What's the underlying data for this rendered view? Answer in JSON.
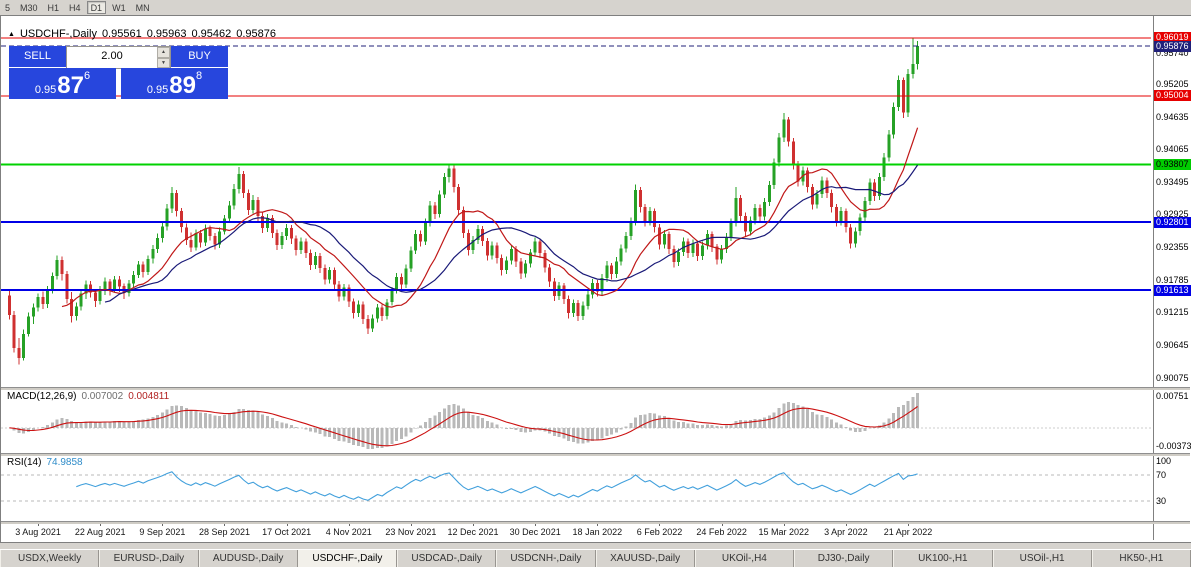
{
  "toolbar": {
    "periods": [
      "5",
      "M30",
      "H1",
      "H4",
      "D1",
      "W1",
      "MN"
    ],
    "active_period": "D1"
  },
  "title": {
    "marker": "▲",
    "symbol": "USDCHF-,Daily",
    "open": "0.95561",
    "high": "0.95963",
    "low": "0.95462",
    "close": "0.95876"
  },
  "trade_panel": {
    "sell_label": "SELL",
    "buy_label": "BUY",
    "volume": "2.00",
    "sell_price_prefix": "0.95",
    "sell_price_big": "87",
    "sell_price_pip": "6",
    "buy_price_prefix": "0.95",
    "buy_price_big": "89",
    "buy_price_pip": "8",
    "panel_color": "#2746dd"
  },
  "macd": {
    "name": "MACD(12,26,9)",
    "value_main": "0.007002",
    "value_signal": "0.004811",
    "axis_top": "0.00751",
    "axis_bottom": "-0.00373"
  },
  "rsi": {
    "name": "RSI(14)",
    "value": "74.9858",
    "axis": [
      {
        "text": "100",
        "value": 100
      },
      {
        "text": "70",
        "value": 70
      },
      {
        "text": "30",
        "value": 30
      }
    ]
  },
  "tabs": [
    {
      "label": "USDX,Weekly"
    },
    {
      "label": "EURUSD-,Daily"
    },
    {
      "label": "AUDUSD-,Daily"
    },
    {
      "label": "USD​CHF-,Daily"
    },
    {
      "label": "USDCAD-,Daily"
    },
    {
      "label": "USDCNH-,Daily"
    },
    {
      "label": "XAUUSD-,Daily"
    },
    {
      "label": "UKOil-,H4"
    },
    {
      "label": "DJ30-,Daily"
    },
    {
      "label": "UK100-,H1"
    },
    {
      "label": "USOil-,H1"
    },
    {
      "label": "HK50-,H1"
    }
  ],
  "active_tab_index": 3,
  "chart_data": {
    "type": "candlestick",
    "symbol": "USDCHF-",
    "timeframe": "Daily",
    "current_price": 0.95876,
    "price_axis": {
      "min": 0.8992,
      "max": 0.964,
      "ticks": [
        "0.95740",
        "0.95205",
        "0.94635",
        "0.94065",
        "0.93495",
        "0.92925",
        "0.92355",
        "0.91785",
        "0.91215",
        "0.90645",
        "0.90075"
      ]
    },
    "price_labels": [
      {
        "text": "0.96019",
        "value": 0.96019,
        "bg": "#e60000",
        "fg": "#ffffff"
      },
      {
        "text": "0.95876",
        "value": 0.95876,
        "bg": "#20207a",
        "fg": "#ffffff"
      },
      {
        "text": "0.95004",
        "value": 0.95004,
        "bg": "#e60000",
        "fg": "#ffffff"
      },
      {
        "text": "0.93807",
        "value": 0.93807,
        "bg": "#00cc00",
        "fg": "#000000"
      },
      {
        "text": "0.92801",
        "value": 0.92801,
        "bg": "#0000e6",
        "fg": "#ffffff"
      },
      {
        "text": "0.91613",
        "value": 0.91613,
        "bg": "#0000e6",
        "fg": "#ffffff"
      }
    ],
    "hlines": [
      {
        "value": 0.96019,
        "color": "#e60000",
        "width": 1
      },
      {
        "value": 0.95004,
        "color": "#e60000",
        "width": 1
      },
      {
        "value": 0.93807,
        "color": "#00d200",
        "width": 2
      },
      {
        "value": 0.92801,
        "color": "#0000e6",
        "width": 2
      },
      {
        "value": 0.91613,
        "color": "#0000e6",
        "width": 2
      }
    ],
    "colors": {
      "up": "#26a126",
      "down": "#cf3030",
      "current_line": "#20207a",
      "background": "#ffffff"
    },
    "indicators": {
      "ma_fast": {
        "period": 12,
        "color": "#c01818"
      },
      "ma_slow": {
        "period": 21,
        "color": "#1a1a78"
      },
      "macd": {
        "fast": 12,
        "slow": 26,
        "signal": 9,
        "histogram_color": "#b9b9b9",
        "signal_color": "#cc1111"
      },
      "rsi": {
        "period": 14,
        "color": "#42a0dc",
        "level_high": 70,
        "level_low": 30
      }
    },
    "date_labels": [
      "3 Aug 2021",
      "22 Aug 2021",
      "9 Sep 2021",
      "28 Sep 2021",
      "17 Oct 2021",
      "4 Nov 2021",
      "23 Nov 2021",
      "12 Dec 2021",
      "30 Dec 2021",
      "18 Jan 2022",
      "6 Feb 2022",
      "24 Feb 2022",
      "15 Mar 2022",
      "3 Apr 2022",
      "21 Apr 2022"
    ],
    "date_anchor_indices": [
      6,
      19,
      32,
      45,
      58,
      71,
      84,
      97,
      110,
      123,
      136,
      149,
      162,
      175,
      188
    ],
    "ohlc": [
      [
        0.9152,
        0.916,
        0.911,
        0.9118
      ],
      [
        0.9118,
        0.9125,
        0.9052,
        0.906
      ],
      [
        0.906,
        0.9078,
        0.9031,
        0.9043
      ],
      [
        0.9043,
        0.9092,
        0.9038,
        0.9085
      ],
      [
        0.9085,
        0.9122,
        0.908,
        0.9115
      ],
      [
        0.9115,
        0.9138,
        0.9102,
        0.9131
      ],
      [
        0.9131,
        0.9155,
        0.9124,
        0.9149
      ],
      [
        0.9149,
        0.9159,
        0.9128,
        0.9137
      ],
      [
        0.9137,
        0.9168,
        0.913,
        0.9162
      ],
      [
        0.9162,
        0.9192,
        0.9155,
        0.9186
      ],
      [
        0.9186,
        0.9222,
        0.918,
        0.9214
      ],
      [
        0.9214,
        0.922,
        0.9178,
        0.9189
      ],
      [
        0.9189,
        0.9195,
        0.9138,
        0.9146
      ],
      [
        0.9146,
        0.9158,
        0.9105,
        0.9116
      ],
      [
        0.9116,
        0.914,
        0.9108,
        0.9133
      ],
      [
        0.9133,
        0.9162,
        0.9126,
        0.9155
      ],
      [
        0.9155,
        0.9178,
        0.9146,
        0.9171
      ],
      [
        0.9171,
        0.9177,
        0.9148,
        0.9157
      ],
      [
        0.9157,
        0.9163,
        0.9132,
        0.9142
      ],
      [
        0.9142,
        0.9168,
        0.9136,
        0.9161
      ],
      [
        0.9161,
        0.9183,
        0.9153,
        0.9176
      ],
      [
        0.9176,
        0.9181,
        0.9152,
        0.9163
      ],
      [
        0.9163,
        0.9186,
        0.9157,
        0.918
      ],
      [
        0.918,
        0.9186,
        0.9158,
        0.9168
      ],
      [
        0.9168,
        0.9173,
        0.9146,
        0.9156
      ],
      [
        0.9156,
        0.9179,
        0.915,
        0.9173
      ],
      [
        0.9173,
        0.9195,
        0.9166,
        0.9188
      ],
      [
        0.9188,
        0.9212,
        0.9182,
        0.9206
      ],
      [
        0.9206,
        0.9211,
        0.9183,
        0.9193
      ],
      [
        0.9193,
        0.9222,
        0.9188,
        0.9216
      ],
      [
        0.9216,
        0.924,
        0.9208,
        0.9233
      ],
      [
        0.9233,
        0.926,
        0.9226,
        0.9252
      ],
      [
        0.9252,
        0.9281,
        0.9244,
        0.9272
      ],
      [
        0.9272,
        0.9312,
        0.9265,
        0.9304
      ],
      [
        0.9304,
        0.9341,
        0.9296,
        0.9331
      ],
      [
        0.9331,
        0.9336,
        0.929,
        0.9299
      ],
      [
        0.9299,
        0.9305,
        0.9262,
        0.9271
      ],
      [
        0.9271,
        0.9278,
        0.924,
        0.9249
      ],
      [
        0.9249,
        0.9262,
        0.9228,
        0.9236
      ],
      [
        0.9236,
        0.9267,
        0.923,
        0.9261
      ],
      [
        0.9261,
        0.9266,
        0.9236,
        0.9244
      ],
      [
        0.9244,
        0.9276,
        0.9238,
        0.9269
      ],
      [
        0.9269,
        0.9274,
        0.9248,
        0.9256
      ],
      [
        0.9256,
        0.9261,
        0.9232,
        0.9241
      ],
      [
        0.9241,
        0.9271,
        0.9235,
        0.9264
      ],
      [
        0.9264,
        0.9292,
        0.9258,
        0.9286
      ],
      [
        0.9286,
        0.9317,
        0.928,
        0.9309
      ],
      [
        0.9309,
        0.9347,
        0.9302,
        0.9338
      ],
      [
        0.9338,
        0.9376,
        0.933,
        0.9364
      ],
      [
        0.9364,
        0.9369,
        0.9322,
        0.9331
      ],
      [
        0.9331,
        0.9337,
        0.9292,
        0.9301
      ],
      [
        0.9301,
        0.9327,
        0.9295,
        0.9319
      ],
      [
        0.9319,
        0.9324,
        0.9282,
        0.9291
      ],
      [
        0.9291,
        0.9297,
        0.9261,
        0.927
      ],
      [
        0.927,
        0.9294,
        0.9263,
        0.9287
      ],
      [
        0.9287,
        0.9292,
        0.9252,
        0.9261
      ],
      [
        0.9261,
        0.9267,
        0.9231,
        0.924
      ],
      [
        0.924,
        0.9263,
        0.9233,
        0.9256
      ],
      [
        0.9256,
        0.9277,
        0.9249,
        0.927
      ],
      [
        0.927,
        0.9275,
        0.9242,
        0.9251
      ],
      [
        0.9251,
        0.9257,
        0.9222,
        0.9231
      ],
      [
        0.9231,
        0.9253,
        0.9224,
        0.9246
      ],
      [
        0.9246,
        0.9251,
        0.9217,
        0.9226
      ],
      [
        0.9226,
        0.9232,
        0.9196,
        0.9205
      ],
      [
        0.9205,
        0.9228,
        0.9198,
        0.9221
      ],
      [
        0.9221,
        0.9226,
        0.9191,
        0.92
      ],
      [
        0.92,
        0.9206,
        0.9171,
        0.918
      ],
      [
        0.918,
        0.9202,
        0.9173,
        0.9196
      ],
      [
        0.9196,
        0.9201,
        0.9162,
        0.9171
      ],
      [
        0.9171,
        0.9177,
        0.9141,
        0.915
      ],
      [
        0.915,
        0.9172,
        0.9143,
        0.9166
      ],
      [
        0.9166,
        0.9171,
        0.9132,
        0.9141
      ],
      [
        0.9141,
        0.9147,
        0.9112,
        0.9121
      ],
      [
        0.9121,
        0.9143,
        0.9114,
        0.9136
      ],
      [
        0.9136,
        0.9141,
        0.9102,
        0.9111
      ],
      [
        0.9111,
        0.9118,
        0.9085,
        0.9094
      ],
      [
        0.9094,
        0.9119,
        0.9088,
        0.9112
      ],
      [
        0.9112,
        0.9137,
        0.9105,
        0.9131
      ],
      [
        0.9131,
        0.9136,
        0.9107,
        0.9116
      ],
      [
        0.9116,
        0.9146,
        0.911,
        0.914
      ],
      [
        0.914,
        0.9167,
        0.9134,
        0.9161
      ],
      [
        0.9161,
        0.9191,
        0.9155,
        0.9184
      ],
      [
        0.9184,
        0.919,
        0.9162,
        0.9171
      ],
      [
        0.9171,
        0.9206,
        0.9165,
        0.9199
      ],
      [
        0.9199,
        0.9237,
        0.9193,
        0.923
      ],
      [
        0.923,
        0.9266,
        0.9224,
        0.9259
      ],
      [
        0.9259,
        0.9265,
        0.9237,
        0.9246
      ],
      [
        0.9246,
        0.9286,
        0.924,
        0.9279
      ],
      [
        0.9279,
        0.9317,
        0.9272,
        0.9309
      ],
      [
        0.9309,
        0.9315,
        0.9285,
        0.9294
      ],
      [
        0.9294,
        0.9335,
        0.9288,
        0.9328
      ],
      [
        0.9328,
        0.9366,
        0.9322,
        0.9359
      ],
      [
        0.9359,
        0.9382,
        0.9349,
        0.9374
      ],
      [
        0.9374,
        0.9379,
        0.9332,
        0.9341
      ],
      [
        0.9341,
        0.9347,
        0.9292,
        0.9301
      ],
      [
        0.9301,
        0.9307,
        0.9252,
        0.9261
      ],
      [
        0.9261,
        0.9267,
        0.9222,
        0.9231
      ],
      [
        0.9231,
        0.9256,
        0.9224,
        0.9249
      ],
      [
        0.9249,
        0.9275,
        0.9242,
        0.9268
      ],
      [
        0.9268,
        0.9273,
        0.9238,
        0.9247
      ],
      [
        0.9247,
        0.9252,
        0.9213,
        0.9222
      ],
      [
        0.9222,
        0.9246,
        0.9215,
        0.9239
      ],
      [
        0.9239,
        0.9244,
        0.9208,
        0.9217
      ],
      [
        0.9217,
        0.9223,
        0.9187,
        0.9196
      ],
      [
        0.9196,
        0.922,
        0.9189,
        0.9213
      ],
      [
        0.9213,
        0.924,
        0.9206,
        0.9233
      ],
      [
        0.9233,
        0.9238,
        0.9202,
        0.9211
      ],
      [
        0.9211,
        0.9217,
        0.9181,
        0.919
      ],
      [
        0.919,
        0.9214,
        0.9183,
        0.9208
      ],
      [
        0.9208,
        0.9233,
        0.9201,
        0.9227
      ],
      [
        0.9227,
        0.9253,
        0.922,
        0.9246
      ],
      [
        0.9246,
        0.9251,
        0.9217,
        0.9226
      ],
      [
        0.9226,
        0.9231,
        0.9192,
        0.9201
      ],
      [
        0.9201,
        0.9207,
        0.9167,
        0.9176
      ],
      [
        0.9176,
        0.9182,
        0.9142,
        0.9151
      ],
      [
        0.9151,
        0.9175,
        0.9144,
        0.9169
      ],
      [
        0.9169,
        0.9174,
        0.9137,
        0.9146
      ],
      [
        0.9146,
        0.9152,
        0.9112,
        0.9121
      ],
      [
        0.9121,
        0.9145,
        0.9114,
        0.9139
      ],
      [
        0.9139,
        0.9144,
        0.9107,
        0.9116
      ],
      [
        0.9116,
        0.9141,
        0.9109,
        0.9134
      ],
      [
        0.9134,
        0.9161,
        0.9127,
        0.9154
      ],
      [
        0.9154,
        0.9181,
        0.9147,
        0.9174
      ],
      [
        0.9174,
        0.9179,
        0.915,
        0.9159
      ],
      [
        0.9159,
        0.9189,
        0.9152,
        0.9182
      ],
      [
        0.9182,
        0.9212,
        0.9175,
        0.9204
      ],
      [
        0.9204,
        0.9209,
        0.918,
        0.9189
      ],
      [
        0.9189,
        0.9219,
        0.9182,
        0.9211
      ],
      [
        0.9211,
        0.9241,
        0.9204,
        0.9234
      ],
      [
        0.9234,
        0.9263,
        0.9227,
        0.9256
      ],
      [
        0.9256,
        0.9288,
        0.9249,
        0.9281
      ],
      [
        0.9281,
        0.9346,
        0.9274,
        0.9336
      ],
      [
        0.9336,
        0.9341,
        0.9297,
        0.9306
      ],
      [
        0.9306,
        0.9312,
        0.9272,
        0.9281
      ],
      [
        0.9281,
        0.9306,
        0.9274,
        0.9299
      ],
      [
        0.9299,
        0.9304,
        0.9262,
        0.9271
      ],
      [
        0.9271,
        0.9277,
        0.9232,
        0.9241
      ],
      [
        0.9241,
        0.9266,
        0.9234,
        0.9259
      ],
      [
        0.9259,
        0.9264,
        0.9224,
        0.9233
      ],
      [
        0.9233,
        0.9239,
        0.9201,
        0.921
      ],
      [
        0.921,
        0.9234,
        0.9203,
        0.9228
      ],
      [
        0.9228,
        0.9253,
        0.9221,
        0.9246
      ],
      [
        0.9246,
        0.9251,
        0.9217,
        0.9226
      ],
      [
        0.9226,
        0.925,
        0.9219,
        0.9243
      ],
      [
        0.9243,
        0.9248,
        0.9212,
        0.9221
      ],
      [
        0.9221,
        0.9246,
        0.9214,
        0.9239
      ],
      [
        0.9239,
        0.9266,
        0.9232,
        0.9259
      ],
      [
        0.9259,
        0.9264,
        0.9228,
        0.9237
      ],
      [
        0.9237,
        0.9242,
        0.9206,
        0.9215
      ],
      [
        0.9215,
        0.924,
        0.9208,
        0.9233
      ],
      [
        0.9233,
        0.9261,
        0.9226,
        0.9254
      ],
      [
        0.9254,
        0.9286,
        0.9247,
        0.9279
      ],
      [
        0.9279,
        0.9341,
        0.9272,
        0.9322
      ],
      [
        0.9322,
        0.9327,
        0.9282,
        0.9291
      ],
      [
        0.9291,
        0.9297,
        0.9255,
        0.9264
      ],
      [
        0.9264,
        0.929,
        0.9257,
        0.9283
      ],
      [
        0.9283,
        0.9312,
        0.9276,
        0.9305
      ],
      [
        0.9305,
        0.9311,
        0.9281,
        0.929
      ],
      [
        0.929,
        0.9322,
        0.9283,
        0.9315
      ],
      [
        0.9315,
        0.9352,
        0.9308,
        0.9345
      ],
      [
        0.9345,
        0.9391,
        0.9338,
        0.9384
      ],
      [
        0.9384,
        0.9436,
        0.9377,
        0.9428
      ],
      [
        0.9428,
        0.9471,
        0.942,
        0.9459
      ],
      [
        0.9459,
        0.9464,
        0.9412,
        0.9421
      ],
      [
        0.9421,
        0.9427,
        0.9372,
        0.9381
      ],
      [
        0.9381,
        0.9387,
        0.9342,
        0.9351
      ],
      [
        0.9351,
        0.9377,
        0.9344,
        0.937
      ],
      [
        0.937,
        0.9375,
        0.9332,
        0.9341
      ],
      [
        0.9341,
        0.9347,
        0.9302,
        0.9311
      ],
      [
        0.9311,
        0.9336,
        0.9304,
        0.9329
      ],
      [
        0.9329,
        0.936,
        0.9322,
        0.9353
      ],
      [
        0.9353,
        0.9358,
        0.9322,
        0.9331
      ],
      [
        0.9331,
        0.9337,
        0.9297,
        0.9306
      ],
      [
        0.9306,
        0.9312,
        0.9272,
        0.9281
      ],
      [
        0.9281,
        0.9306,
        0.9274,
        0.9299
      ],
      [
        0.9299,
        0.9304,
        0.9262,
        0.9271
      ],
      [
        0.9271,
        0.9277,
        0.9234,
        0.9243
      ],
      [
        0.9243,
        0.9271,
        0.9236,
        0.9264
      ],
      [
        0.9264,
        0.9295,
        0.9257,
        0.9288
      ],
      [
        0.9288,
        0.9324,
        0.9281,
        0.9317
      ],
      [
        0.9317,
        0.9356,
        0.931,
        0.9349
      ],
      [
        0.9349,
        0.9355,
        0.9317,
        0.9326
      ],
      [
        0.9326,
        0.9366,
        0.9319,
        0.9359
      ],
      [
        0.9359,
        0.9401,
        0.9352,
        0.9393
      ],
      [
        0.9393,
        0.9441,
        0.9386,
        0.9433
      ],
      [
        0.9433,
        0.9489,
        0.9426,
        0.9481
      ],
      [
        0.9481,
        0.9536,
        0.9474,
        0.9528
      ],
      [
        0.9528,
        0.9533,
        0.9462,
        0.9471
      ],
      [
        0.9471,
        0.9547,
        0.9464,
        0.9539
      ],
      [
        0.9539,
        0.96019,
        0.9531,
        0.9556
      ],
      [
        0.95561,
        0.95963,
        0.95462,
        0.95876
      ]
    ]
  }
}
